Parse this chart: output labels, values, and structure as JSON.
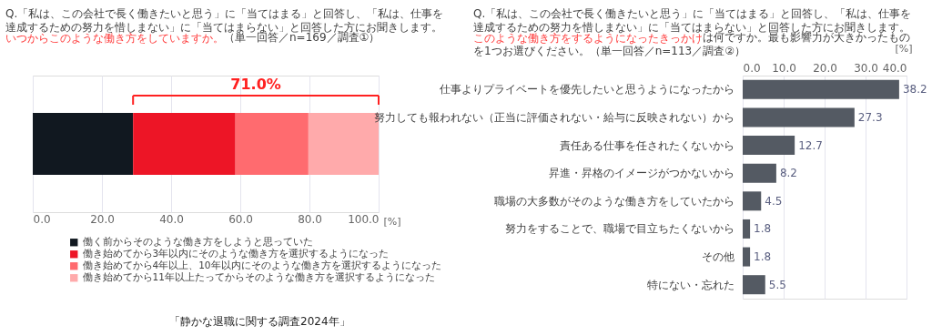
{
  "chart_data": [
    {
      "type": "bar",
      "orientation": "horizontal",
      "stacked": true,
      "title": "Q.「私は、この会社で長く働きたいと思う」に「当てはまる」と回答し、「私は、仕事を達成するための努力を惜しまない」に「当てはまらない」と回答した方にお聞きします。",
      "subtitle": "いつからこのような働き方をしていますか。",
      "categories": [
        null
      ],
      "series": [
        {
          "name": "働く前からそのような働き方をしようと思っていた",
          "color": "#111820",
          "values": [
            29.0
          ]
        },
        {
          "name": "働き始めてから3年以内にそのような働き方を選択するようになった",
          "color": "#ed1526",
          "values": [
            29.6
          ]
        },
        {
          "name": "働き始めてから4年以上、10年以内にそのような働き方を選択するようになった",
          "color": "#ff6b6f",
          "values": [
            21.1
          ]
        },
        {
          "name": "働き始めてから11年以上たってからそのような働き方を選択するようになった",
          "color": "#ffaaab",
          "values": [
            20.3
          ]
        }
      ],
      "xlabel": "[%]",
      "xlim": [
        0,
        100
      ],
      "xticks": [
        {
          "value": 0,
          "label": "0.0"
        },
        {
          "value": 20,
          "label": "20.0"
        },
        {
          "value": 40,
          "label": "40.0"
        },
        {
          "value": 60,
          "label": "60.0"
        },
        {
          "value": 80,
          "label": "80.0"
        },
        {
          "value": 100,
          "label": "100.0"
        }
      ],
      "grid": "x",
      "legend": "bottom",
      "tick_labels": "x",
      "annotations": [
        "71.0%",
        "（単一回答／n=169／調査①）",
        "「静かな退職に関する調査2024年」"
      ]
    },
    {
      "type": "bar",
      "orientation": "horizontal",
      "title": "Q.「私は、この会社で長く働きたいと思う」に「当てはまる」と回答し、「私は、仕事を達成するための努力を惜しまない」に「当てはまらない」と回答した方にお聞きします。",
      "subtitle": "このような働き方をするようになったきっかけ",
      "categories": [
        "仕事よりプライベートを優先したいと思うようになったから",
        "努力しても報われない（正当に評価されない・給与に反映されない）から",
        "責任ある仕事を任されたくないから",
        "昇進・昇格のイメージがつかないから",
        "職場の大多数がそのような働き方をしていたから",
        "努力をすることで、職場で目立ちたくないから",
        "その他",
        "特にない・忘れた"
      ],
      "values": [
        38.2,
        27.3,
        12.7,
        8.2,
        4.5,
        1.8,
        1.8,
        5.5
      ],
      "color": "#545a63",
      "xlabel": "[%]",
      "xlim": [
        0,
        40
      ],
      "xticks": [
        {
          "value": 0,
          "label": "0.0"
        },
        {
          "value": 10,
          "label": "10.0"
        },
        {
          "value": 20,
          "label": "20.0"
        },
        {
          "value": 30,
          "label": "30.0"
        },
        {
          "value": 40,
          "label": "40.0"
        }
      ],
      "grid": "x",
      "data_labels": true,
      "annotations": [
        "は何ですか。最も影響力が大きかったもの",
        "を1つお選びください。（単一回答／n=113／調査②）"
      ]
    }
  ]
}
